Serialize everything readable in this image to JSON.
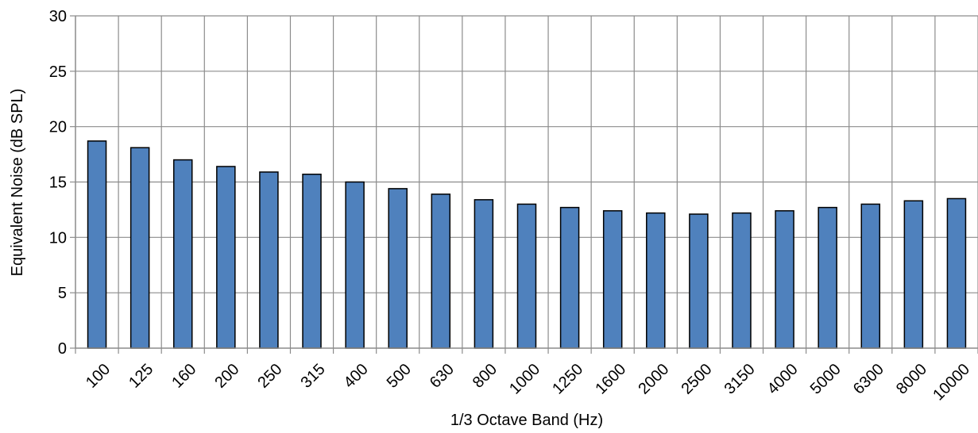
{
  "chart_data": {
    "type": "bar",
    "title": "",
    "xlabel": "1/3 Octave Band (Hz)",
    "ylabel": "Equivalent Noise (dB SPL)",
    "ylim": [
      0,
      30
    ],
    "yticks": [
      "0",
      "5",
      "10",
      "15",
      "20",
      "25",
      "30"
    ],
    "grid": true,
    "legend": "none",
    "categories": [
      "100",
      "125",
      "160",
      "200",
      "250",
      "315",
      "400",
      "500",
      "630",
      "800",
      "1000",
      "1250",
      "1600",
      "2000",
      "2500",
      "3150",
      "4000",
      "5000",
      "6300",
      "8000",
      "10000"
    ],
    "series": [
      {
        "values": [
          18.7,
          18.1,
          17.0,
          16.4,
          15.9,
          15.7,
          15.0,
          14.4,
          13.9,
          13.4,
          13.0,
          12.7,
          12.4,
          12.2,
          12.1,
          12.2,
          12.4,
          12.7,
          13.0,
          13.3,
          13.5
        ]
      }
    ],
    "colors": {
      "bar_fill": "#4f81bd",
      "bar_stroke": "#000000",
      "grid": "#8c8c8c",
      "axis": "#8c8c8c"
    }
  }
}
